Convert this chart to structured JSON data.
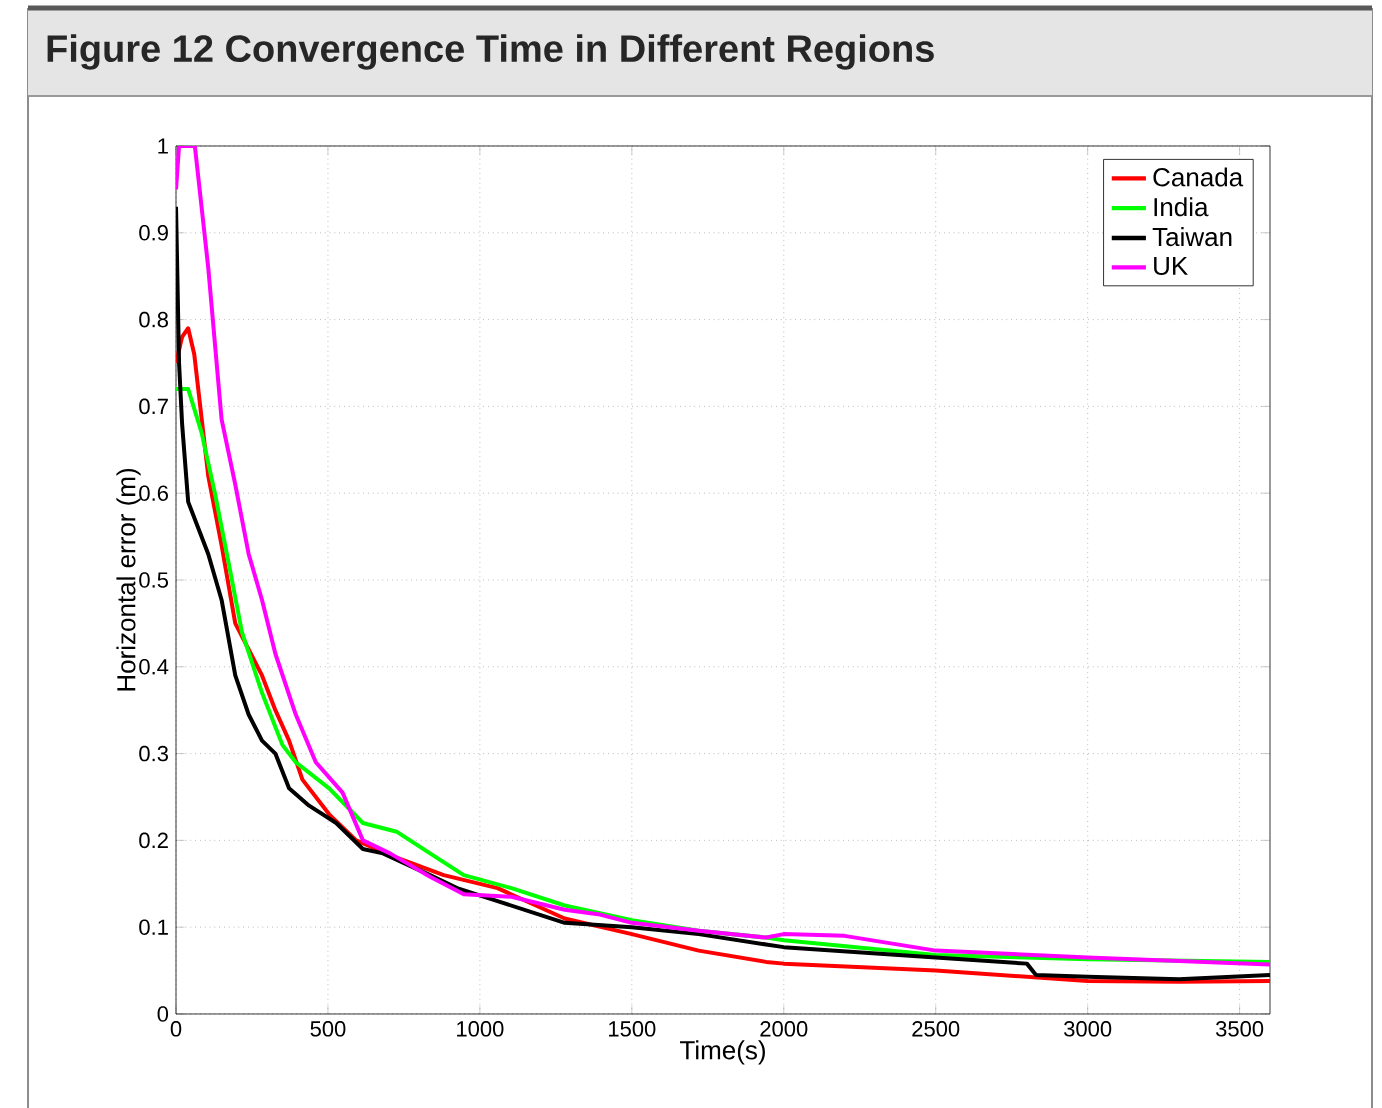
{
  "chart_data": {
    "type": "line",
    "title": "Figure 12  Convergence Time in Different Regions",
    "xlabel": "Time(s)",
    "ylabel": "Horizontal error (m)",
    "xlim": [
      0,
      3600
    ],
    "ylim": [
      0,
      1
    ],
    "xticks": [
      0,
      500,
      1000,
      1500,
      2000,
      2500,
      3000,
      3500
    ],
    "yticks": [
      0,
      0.1,
      0.2,
      0.3,
      0.4,
      0.5,
      0.6,
      0.7,
      0.8,
      0.9,
      1
    ],
    "grid": true,
    "legend": "top right",
    "line_style": "solid",
    "series": [
      {
        "name": "Canada",
        "color": "#ff0000",
        "x": [
          0,
          20,
          40,
          60,
          106,
          150,
          195,
          239,
          283,
          327,
          372,
          416,
          504,
          593,
          726,
          881,
          1058,
          1279,
          1500,
          1720,
          1942,
          2000,
          2500,
          3000,
          3300,
          3600
        ],
        "values": [
          0.75,
          0.78,
          0.79,
          0.76,
          0.62,
          0.54,
          0.45,
          0.42,
          0.39,
          0.35,
          0.315,
          0.27,
          0.23,
          0.2,
          0.18,
          0.16,
          0.145,
          0.11,
          0.092,
          0.073,
          0.06,
          0.058,
          0.05,
          0.038,
          0.037,
          0.038
        ]
      },
      {
        "name": "India",
        "color": "#00ff00",
        "x": [
          0,
          40,
          84,
          128,
          173,
          217,
          283,
          350,
          394,
          504,
          615,
          726,
          836,
          947,
          1104,
          1279,
          1500,
          1720,
          1942,
          2000,
          2500,
          3000,
          3600
        ],
        "values": [
          0.72,
          0.72,
          0.67,
          0.6,
          0.52,
          0.44,
          0.37,
          0.31,
          0.29,
          0.26,
          0.22,
          0.21,
          0.185,
          0.16,
          0.145,
          0.125,
          0.108,
          0.096,
          0.088,
          0.085,
          0.068,
          0.063,
          0.06
        ]
      },
      {
        "name": "Taiwan",
        "color": "#000000",
        "x": [
          0,
          10,
          20,
          40,
          106,
          150,
          195,
          239,
          283,
          327,
          372,
          438,
          527,
          615,
          681,
          836,
          925,
          1058,
          1279,
          1500,
          1720,
          1942,
          2000,
          2500,
          2800,
          2830,
          3000,
          3300,
          3600
        ],
        "values": [
          0.93,
          0.75,
          0.68,
          0.59,
          0.53,
          0.477,
          0.39,
          0.345,
          0.315,
          0.3,
          0.26,
          0.24,
          0.22,
          0.19,
          0.185,
          0.16,
          0.145,
          0.13,
          0.105,
          0.1,
          0.092,
          0.08,
          0.077,
          0.065,
          0.058,
          0.045,
          0.043,
          0.04,
          0.045
        ]
      },
      {
        "name": "UK",
        "color": "#ff00ff",
        "x": [
          0,
          10,
          62,
          106,
          150,
          195,
          239,
          283,
          327,
          394,
          460,
          548,
          615,
          704,
          836,
          947,
          1104,
          1279,
          1389,
          1500,
          1720,
          1942,
          2000,
          2200,
          2500,
          3000,
          3600
        ],
        "values": [
          0.95,
          1,
          1,
          0.86,
          0.685,
          0.61,
          0.53,
          0.477,
          0.415,
          0.345,
          0.29,
          0.255,
          0.2,
          0.185,
          0.158,
          0.138,
          0.135,
          0.12,
          0.115,
          0.105,
          0.096,
          0.088,
          0.092,
          0.09,
          0.073,
          0.065,
          0.057
        ]
      }
    ]
  }
}
